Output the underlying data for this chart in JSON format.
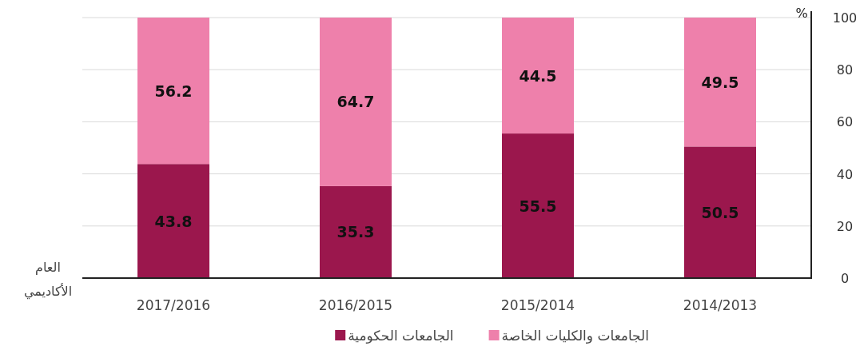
{
  "chart_data": {
    "type": "bar",
    "stacked": true,
    "categories": [
      "2017/2016",
      "2016/2015",
      "2015/2014",
      "2014/2013"
    ],
    "series": [
      {
        "name": "الجامعات الحكومية",
        "color": "#9b174d",
        "values": [
          43.8,
          35.3,
          55.5,
          50.5
        ]
      },
      {
        "name": "الجامعات والكليات الخاصة",
        "color": "#ee80ab",
        "values": [
          56.2,
          64.7,
          44.5,
          49.5
        ]
      }
    ],
    "ylim": [
      0,
      100
    ],
    "yticks": [
      0,
      20,
      40,
      60,
      80,
      100
    ],
    "ylabel": "%",
    "xlabel": "العام الأكاديمي",
    "grid": "y",
    "legend": "bottom",
    "data_labels": true
  }
}
